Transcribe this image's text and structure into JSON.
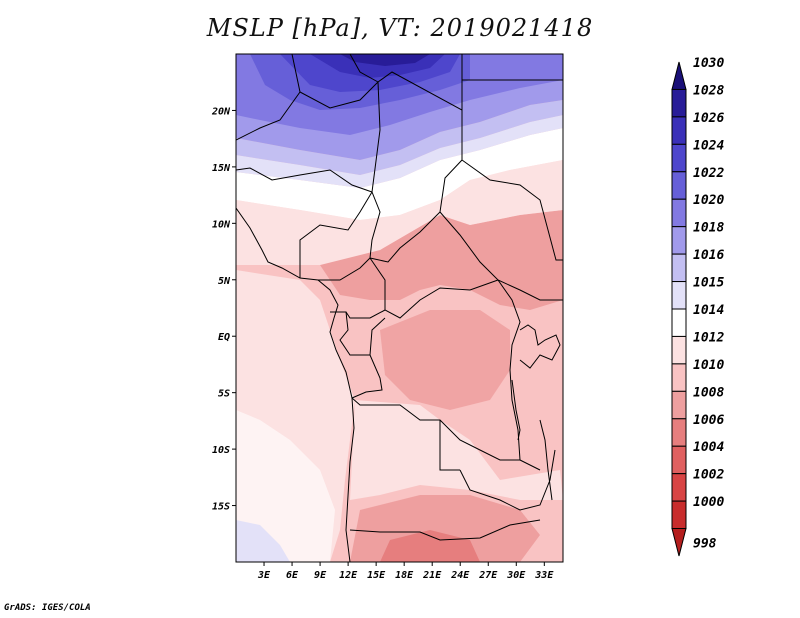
{
  "title": "MSLP [hPa], VT: 2019021418",
  "credit": "GrADS: IGES/COLA",
  "map": {
    "lon_range": [
      0,
      35
    ],
    "lat_range": [
      -20,
      25
    ],
    "lat_ticks": [
      {
        "value": 20,
        "label": "20N"
      },
      {
        "value": 15,
        "label": "15N"
      },
      {
        "value": 10,
        "label": "10N"
      },
      {
        "value": 5,
        "label": "5N"
      },
      {
        "value": 0,
        "label": "EQ"
      },
      {
        "value": -5,
        "label": "5S"
      },
      {
        "value": -10,
        "label": "10S"
      },
      {
        "value": -15,
        "label": "15S"
      }
    ],
    "lon_ticks": [
      {
        "value": 3,
        "label": "3E"
      },
      {
        "value": 6,
        "label": "6E"
      },
      {
        "value": 9,
        "label": "9E"
      },
      {
        "value": 12,
        "label": "12E"
      },
      {
        "value": 15,
        "label": "15E"
      },
      {
        "value": 18,
        "label": "18E"
      },
      {
        "value": 21,
        "label": "21E"
      },
      {
        "value": 24,
        "label": "24E"
      },
      {
        "value": 27,
        "label": "27E"
      },
      {
        "value": 30,
        "label": "30E"
      },
      {
        "value": 33,
        "label": "33E"
      }
    ]
  },
  "colorbar": {
    "levels": [
      {
        "label": "1030",
        "color": "#1a1078"
      },
      {
        "label": "1028",
        "color": "#281c98"
      },
      {
        "label": "1026",
        "color": "#3a30b8"
      },
      {
        "label": "1024",
        "color": "#4e46cc"
      },
      {
        "label": "1022",
        "color": "#665fd8"
      },
      {
        "label": "1020",
        "color": "#8279e2"
      },
      {
        "label": "1018",
        "color": "#a19aeb"
      },
      {
        "label": "1016",
        "color": "#c3bff2"
      },
      {
        "label": "1015",
        "color": "#e3e1f8"
      },
      {
        "label": "1014",
        "color": "#ffffff"
      },
      {
        "label": "1012",
        "color": "#fce2e2"
      },
      {
        "label": "1010",
        "color": "#f9c3c3"
      },
      {
        "label": "1008",
        "color": "#ee9f9f"
      },
      {
        "label": "1006",
        "color": "#e67e7e"
      },
      {
        "label": "1004",
        "color": "#e06060"
      },
      {
        "label": "1002",
        "color": "#d84444"
      },
      {
        "label": "1000",
        "color": "#c82c2c"
      },
      {
        "label": "998",
        "color": "#b41e1e"
      }
    ]
  }
}
